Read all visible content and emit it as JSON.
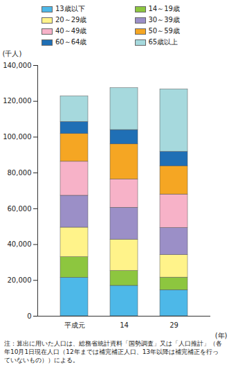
{
  "chart_data": {
    "type": "bar",
    "stacked": true,
    "legend": "top",
    "grid": false,
    "y_label": "(千人)",
    "x_label": "(年)",
    "note": "注：算出に用いた人口は、総務省統計資料「国勢調査」又は「人口推計」（各年10月1日現在人口（12年までは補完補正人口、13年以降は補完補正を行っていないもの））による。",
    "categories": [
      "平成元",
      "14",
      "29"
    ],
    "series": [
      {
        "name": "13歳以下",
        "color": "#4db8e8",
        "values": [
          21500,
          17000,
          14600
        ]
      },
      {
        "name": "14～19歳",
        "color": "#8dc63f",
        "values": [
          11500,
          8300,
          7000
        ]
      },
      {
        "name": "20～29歳",
        "color": "#fff38a",
        "values": [
          16500,
          17500,
          12600
        ]
      },
      {
        "name": "30～39歳",
        "color": "#9b8fc7",
        "values": [
          17800,
          17800,
          15100
        ]
      },
      {
        "name": "40～49歳",
        "color": "#f7b2c8",
        "values": [
          19000,
          15800,
          18700
        ]
      },
      {
        "name": "50～59歳",
        "color": "#f5a623",
        "values": [
          15500,
          19600,
          15800
        ]
      },
      {
        "name": "60～64歳",
        "color": "#1f6fb5",
        "values": [
          6700,
          8000,
          8000
        ]
      },
      {
        "name": "65歳以上",
        "color": "#a6d9dd",
        "values": [
          14300,
          23400,
          34900
        ]
      }
    ],
    "ylim": [
      0,
      140000
    ],
    "yticks": [
      0,
      {
        "value": 20000,
        "label": "20,000"
      },
      {
        "value": 40000,
        "label": "40,000"
      },
      {
        "value": 60000,
        "label": "60,000"
      },
      {
        "value": 80000,
        "label": "80,000"
      },
      {
        "value": 100000,
        "label": "100,000"
      },
      {
        "value": 120000,
        "label": "120,000"
      },
      {
        "value": 140000,
        "label": "140,000"
      }
    ]
  }
}
